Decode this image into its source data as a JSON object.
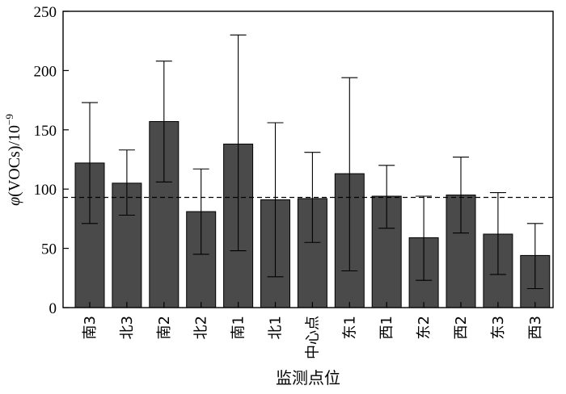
{
  "chart_data": {
    "type": "bar",
    "categories": [
      "南3",
      "北3",
      "南2",
      "北2",
      "南1",
      "北1",
      "中心点",
      "东1",
      "西1",
      "东2",
      "西2",
      "东3",
      "西3"
    ],
    "values": [
      122,
      105,
      157,
      81,
      138,
      91,
      92,
      113,
      94,
      59,
      95,
      62,
      44
    ],
    "error_upper": [
      173,
      133,
      208,
      117,
      230,
      156,
      131,
      194,
      120,
      94,
      127,
      97,
      71
    ],
    "error_lower": [
      71,
      78,
      106,
      45,
      48,
      26,
      55,
      31,
      67,
      23,
      63,
      28,
      16
    ],
    "reference_line": 93,
    "ylim": [
      0,
      250
    ],
    "yticks": [
      "0",
      "50",
      "100",
      "150",
      "200",
      "250"
    ],
    "ylabel": {
      "phi": "φ",
      "main": "(VOCs)/10",
      "exp": "−9"
    },
    "xlabel": "监测点位",
    "bar_color": "#4a4a4a",
    "grid": false
  }
}
